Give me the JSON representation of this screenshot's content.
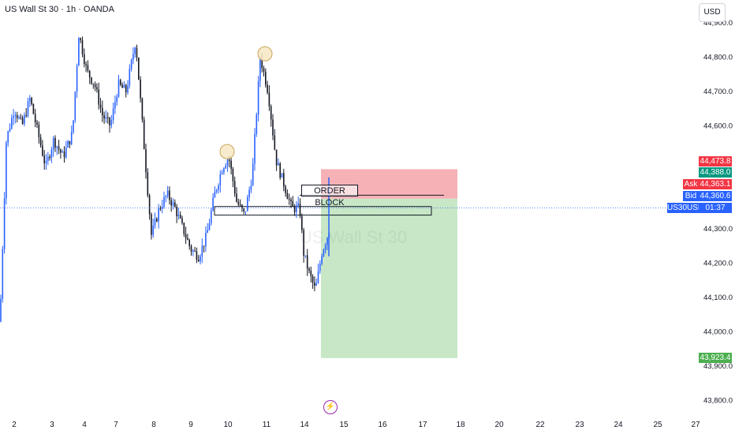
{
  "header": {
    "title": "US Wall St 30 · 1h · OANDA",
    "currency_button": "USD"
  },
  "watermark": "US Wall St 30",
  "annotation": {
    "order_block_label": "ORDER BLOCK"
  },
  "price_axis": {
    "ticks": [
      "44,900.0",
      "44,800.0",
      "44,700.0",
      "44,600.0",
      "44,300.0",
      "44,200.0",
      "44,100.0",
      "44,000.0",
      "43,900.0",
      "43,800.0"
    ],
    "tags": {
      "stop": "44,473.8",
      "entry": "44,388.0",
      "ask_label": "Ask",
      "ask_value": "44,363.1",
      "bid_label": "Bid",
      "bid_value": "44,360.6",
      "symbol": "US30USD",
      "countdown": "01:37",
      "target": "43,923.4"
    }
  },
  "time_axis": {
    "labels": [
      "2",
      "3",
      "4",
      "7",
      "8",
      "9",
      "10",
      "11",
      "14",
      "15",
      "16",
      "17",
      "18",
      "20",
      "22",
      "23",
      "24",
      "25",
      "27"
    ]
  },
  "chart_data": {
    "type": "candlestick",
    "title": "US Wall St 30 · 1h · OANDA",
    "x_ticks": [
      "2",
      "3",
      "4",
      "7",
      "8",
      "9",
      "10",
      "11",
      "14",
      "15",
      "16",
      "17",
      "18",
      "20",
      "22",
      "23",
      "24",
      "25",
      "27"
    ],
    "y_ticks": [
      44900,
      44800,
      44700,
      44600,
      44300,
      44200,
      44100,
      44000,
      43900,
      43800
    ],
    "ylim": [
      43780,
      44930
    ],
    "current_price": 44360.6,
    "close_path": [
      [
        0,
        44030
      ],
      [
        8,
        44560
      ],
      [
        18,
        44650
      ],
      [
        28,
        44600
      ],
      [
        38,
        44680
      ],
      [
        48,
        44580
      ],
      [
        58,
        44480
      ],
      [
        68,
        44560
      ],
      [
        80,
        44510
      ],
      [
        92,
        44580
      ],
      [
        100,
        44870
      ],
      [
        110,
        44760
      ],
      [
        120,
        44720
      ],
      [
        130,
        44630
      ],
      [
        140,
        44600
      ],
      [
        150,
        44720
      ],
      [
        160,
        44700
      ],
      [
        172,
        44850
      ],
      [
        182,
        44560
      ],
      [
        192,
        44280
      ],
      [
        202,
        44360
      ],
      [
        212,
        44400
      ],
      [
        222,
        44360
      ],
      [
        232,
        44300
      ],
      [
        242,
        44240
      ],
      [
        252,
        44220
      ],
      [
        262,
        44280
      ],
      [
        272,
        44400
      ],
      [
        282,
        44480
      ],
      [
        290,
        44510
      ],
      [
        300,
        44380
      ],
      [
        310,
        44340
      ],
      [
        320,
        44460
      ],
      [
        330,
        44800
      ],
      [
        340,
        44700
      ],
      [
        350,
        44500
      ],
      [
        360,
        44430
      ],
      [
        370,
        44360
      ],
      [
        380,
        44360
      ],
      [
        385,
        44230
      ],
      [
        392,
        44170
      ],
      [
        400,
        44120
      ],
      [
        408,
        44230
      ],
      [
        418,
        44300
      ]
    ],
    "circles": [
      {
        "x_at": 288,
        "price": 44525
      },
      {
        "x_at": 336,
        "price": 44810
      }
    ],
    "order_block_zone": {
      "top": 44365,
      "bottom": 44340
    },
    "order_block_line": 44398,
    "position": {
      "type": "short",
      "entry": 44388.0,
      "stop": 44473.8,
      "target": 43923.4
    },
    "colors": {
      "up_candle": "#2962ff",
      "down_candle": "#131722",
      "stop_zone": "#f5a3aa",
      "profit_zone": "#c4e6c3",
      "stop_tag": "#f23645",
      "entry_tag": "#089981",
      "target_tag": "#4caf50",
      "ask_tag": "#f23645",
      "bid_tag": "#2962ff",
      "symbol_tag": "#2962ff",
      "circle_fill": "#f7e7c4",
      "circle_stroke": "#c9a45a"
    }
  }
}
